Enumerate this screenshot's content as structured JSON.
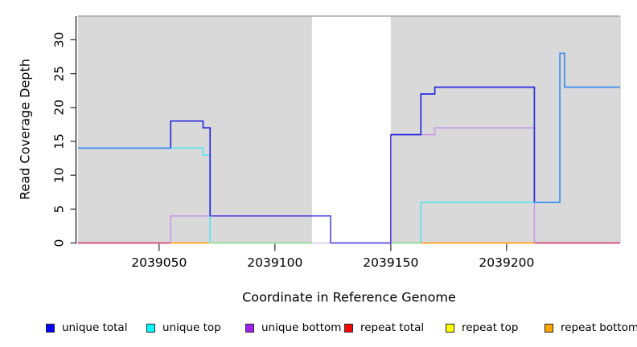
{
  "figure": {
    "kind": "R coverage step plot",
    "background": "#ffffff"
  },
  "chart_data": {
    "type": "line",
    "subtype": "step-coverage",
    "title": "",
    "xlabel": "Coordinate in Reference Genome",
    "ylabel": "Read Coverage Depth",
    "xlim": [
      2039015,
      2039249
    ],
    "ylim": [
      0,
      33.5
    ],
    "xticks": [
      2039050,
      2039100,
      2039150,
      2039200
    ],
    "yticks": [
      0,
      5,
      10,
      15,
      20,
      25,
      30
    ],
    "grid": "off",
    "plot_bg_color": "#d9d9d9",
    "gap_region": {
      "x0": 2039116,
      "x1": 2039150,
      "color": "#ffffff"
    },
    "shaded_regions": [
      {
        "x0": 2039015,
        "x1": 2039116,
        "color": "#d9d9d9"
      },
      {
        "x0": 2039150,
        "x1": 2039249,
        "color": "#d9d9d9"
      }
    ],
    "series": [
      {
        "name": "unique total",
        "color": "#0000ff",
        "steps": [
          [
            2039015,
            14
          ],
          [
            2039055,
            18
          ],
          [
            2039069,
            17
          ],
          [
            2039072,
            4
          ],
          [
            2039124,
            0
          ],
          [
            2039150,
            16
          ],
          [
            2039163,
            22
          ],
          [
            2039169,
            23
          ],
          [
            2039212,
            6
          ],
          [
            2039223,
            28
          ],
          [
            2039225,
            23
          ],
          [
            2039249,
            23
          ]
        ]
      },
      {
        "name": "unique top",
        "color": "#00ffff",
        "steps": [
          [
            2039015,
            14
          ],
          [
            2039069,
            13
          ],
          [
            2039072,
            0
          ],
          [
            2039163,
            6
          ],
          [
            2039223,
            28
          ],
          [
            2039225,
            23
          ],
          [
            2039249,
            23
          ]
        ]
      },
      {
        "name": "unique bottom",
        "color": "#a020f0",
        "steps": [
          [
            2039015,
            0
          ],
          [
            2039055,
            4
          ],
          [
            2039116,
            0
          ],
          [
            2039150,
            16
          ],
          [
            2039169,
            17
          ],
          [
            2039212,
            0
          ],
          [
            2039249,
            0
          ]
        ]
      },
      {
        "name": "repeat total",
        "color": "#ff0000",
        "steps": [
          [
            2039015,
            0
          ],
          [
            2039249,
            0
          ]
        ]
      },
      {
        "name": "repeat top",
        "color": "#ffff00",
        "steps": [
          [
            2039015,
            0
          ],
          [
            2039249,
            0
          ]
        ]
      },
      {
        "name": "repeat bottom",
        "color": "#ffa500",
        "steps": [
          [
            2039015,
            0
          ],
          [
            2039249,
            0
          ]
        ]
      }
    ],
    "render_segments": [
      {
        "name": "repeat-total-baseline-left",
        "color": "#d6406e",
        "points": [
          [
            2039015,
            0
          ],
          [
            2039055,
            0
          ]
        ]
      },
      {
        "name": "repeat-total-baseline-right",
        "color": "#d6406e",
        "points": [
          [
            2039212,
            0
          ],
          [
            2039249,
            0
          ]
        ]
      },
      {
        "name": "repeat-bottom-baseline-left",
        "color": "#ffa216",
        "points": [
          [
            2039055,
            0
          ],
          [
            2039072,
            0
          ]
        ]
      },
      {
        "name": "repeat-bottom-baseline-right",
        "color": "#ffa216",
        "points": [
          [
            2039163,
            0
          ],
          [
            2039212,
            0
          ]
        ]
      },
      {
        "name": "top-strand-zero-overlap-left",
        "color": "#8fdd99",
        "points": [
          [
            2039072,
            0
          ],
          [
            2039116,
            0
          ]
        ]
      },
      {
        "name": "top-strand-zero-overlap-right",
        "color": "#8fdd99",
        "points": [
          [
            2039150,
            0
          ],
          [
            2039163,
            0
          ]
        ]
      },
      {
        "name": "unique-bottom-gap-baseline",
        "color": "#dcc8ef",
        "points": [
          [
            2039116,
            0
          ],
          [
            2039124,
            0
          ]
        ]
      },
      {
        "name": "unique-bottom-left",
        "color": "#c79fe6",
        "points": [
          [
            2039055,
            0
          ],
          [
            2039055,
            4
          ],
          [
            2039116,
            4
          ]
        ]
      },
      {
        "name": "unique-bottom-right",
        "color": "#c79fe6",
        "points": [
          [
            2039150,
            0
          ],
          [
            2039150,
            16
          ],
          [
            2039169,
            16
          ],
          [
            2039169,
            17
          ],
          [
            2039212,
            17
          ],
          [
            2039212,
            0
          ]
        ]
      },
      {
        "name": "unique-top-left",
        "color": "#5fe2ec",
        "points": [
          [
            2039015,
            14
          ],
          [
            2039069,
            14
          ],
          [
            2039069,
            13
          ],
          [
            2039072,
            13
          ],
          [
            2039072,
            0
          ]
        ]
      },
      {
        "name": "unique-top-right",
        "color": "#5fe2ec",
        "points": [
          [
            2039163,
            0
          ],
          [
            2039163,
            6
          ],
          [
            2039223,
            6
          ]
        ]
      },
      {
        "name": "unique-total-left",
        "color": "#2b2bdf",
        "points": [
          [
            2039055,
            14
          ],
          [
            2039055,
            18
          ],
          [
            2039069,
            18
          ],
          [
            2039069,
            17
          ],
          [
            2039072,
            17
          ],
          [
            2039072,
            4
          ]
        ]
      },
      {
        "name": "unique-total-bottom-overlap",
        "color": "#5a49e2",
        "points": [
          [
            2039072,
            4
          ],
          [
            2039116,
            4
          ]
        ]
      },
      {
        "name": "unique-total-gap",
        "color": "#5352ea",
        "points": [
          [
            2039116,
            4
          ],
          [
            2039124,
            4
          ],
          [
            2039124,
            0
          ]
        ]
      },
      {
        "name": "unique-total-gap-baseline",
        "color": "#5a49e2",
        "points": [
          [
            2039124,
            0
          ],
          [
            2039150,
            0
          ],
          [
            2039150,
            16
          ]
        ]
      },
      {
        "name": "unique-total-right",
        "color": "#2b2bdf",
        "points": [
          [
            2039150,
            16
          ],
          [
            2039163,
            16
          ],
          [
            2039163,
            22
          ],
          [
            2039169,
            22
          ],
          [
            2039169,
            23
          ],
          [
            2039212,
            23
          ],
          [
            2039212,
            6
          ]
        ]
      },
      {
        "name": "unique-total-top-overlap-left",
        "color": "#3e8eef",
        "points": [
          [
            2039015,
            14
          ],
          [
            2039055,
            14
          ]
        ]
      },
      {
        "name": "unique-total-top-overlap-right",
        "color": "#3e8eef",
        "points": [
          [
            2039212,
            6
          ],
          [
            2039223,
            6
          ],
          [
            2039223,
            28
          ],
          [
            2039225,
            28
          ],
          [
            2039225,
            23
          ],
          [
            2039249,
            23
          ]
        ]
      }
    ],
    "legend": {
      "position": "bottom",
      "entries": [
        {
          "label": "unique total",
          "color": "#0000ff"
        },
        {
          "label": "unique top",
          "color": "#00ffff"
        },
        {
          "label": "unique bottom",
          "color": "#a020f0"
        },
        {
          "label": "repeat total",
          "color": "#ff0000"
        },
        {
          "label": "repeat top",
          "color": "#ffff00"
        },
        {
          "label": "repeat bottom",
          "color": "#ffa500"
        }
      ]
    },
    "axis_colors": {
      "line": "#1f1f1f",
      "tick": "#3c3c3c",
      "text": "#000000",
      "top_border": "#9a9a9a",
      "right_border": "#cbcbcb"
    }
  }
}
